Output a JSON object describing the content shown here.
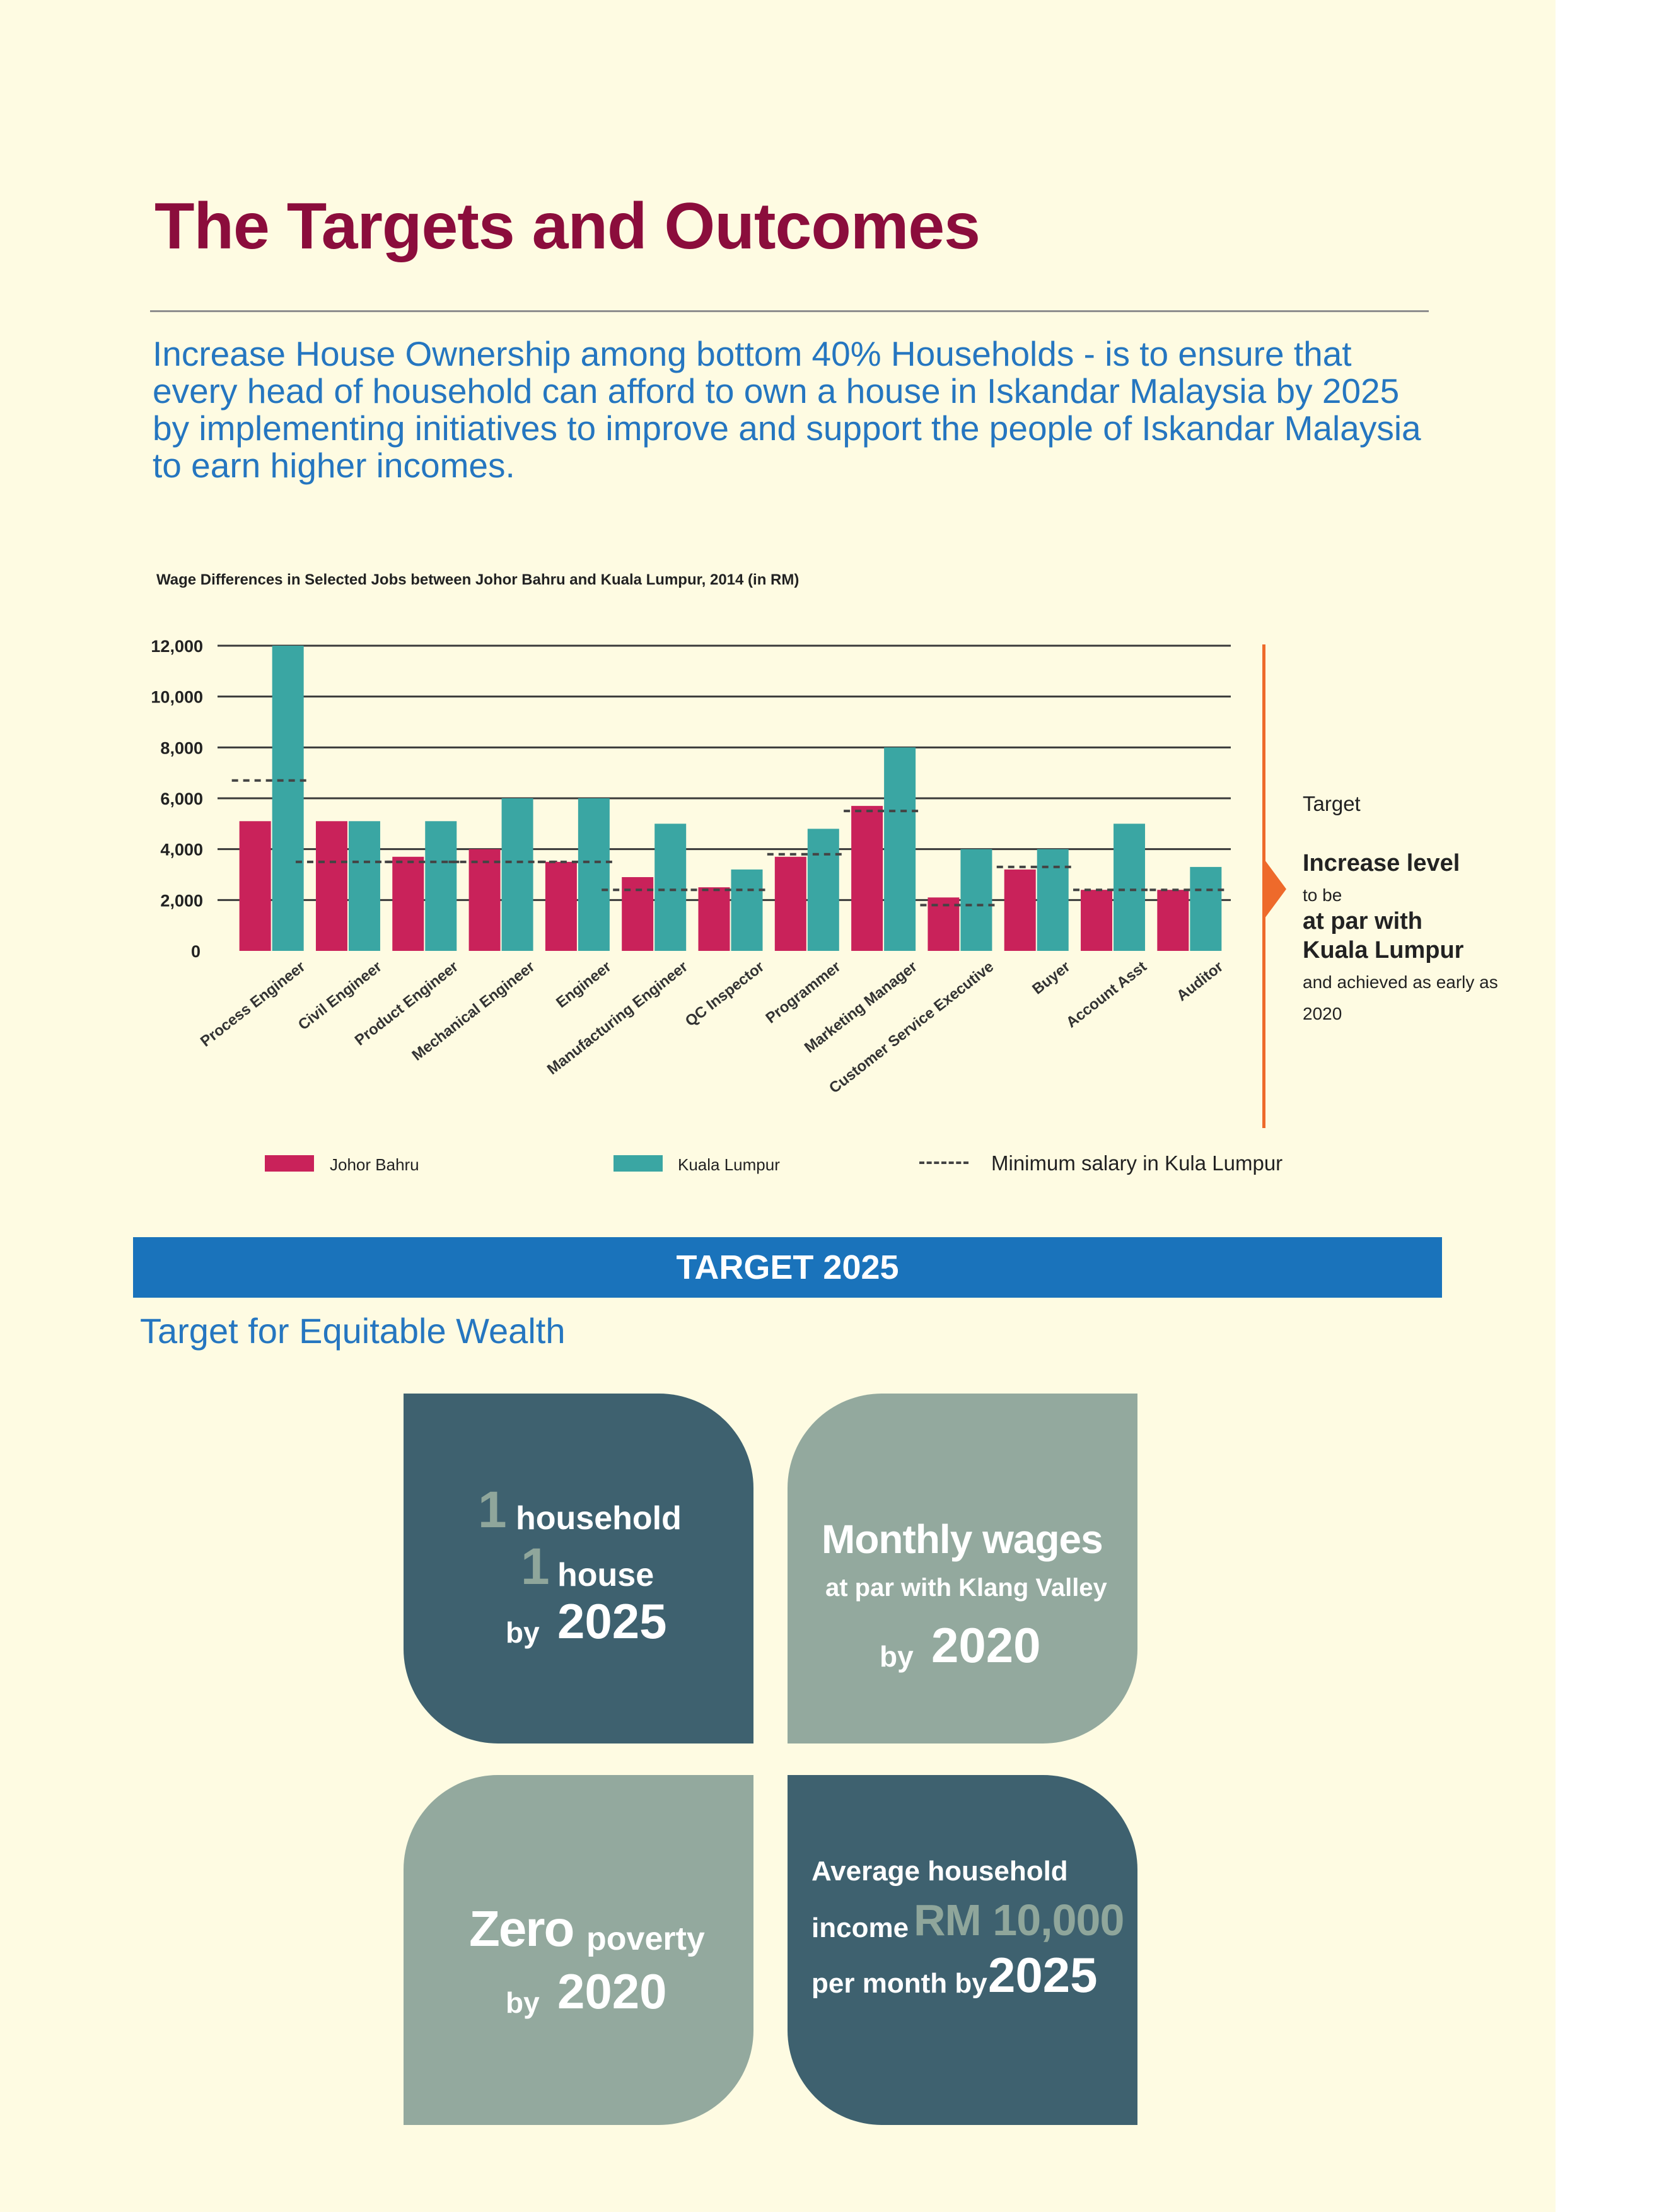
{
  "title": "The Targets and Outcomes",
  "intro": "Increase House Ownership among bottom 40% Households - is to ensure that every head of household can afford to own a house in Iskandar Malaysia by 2025 by implementing initiatives to improve and support the people of Iskandar Malaysia to earn higher incomes.",
  "colors": {
    "johor": "#c9225a",
    "kl": "#3aa6a3",
    "accent": "#ee6a2b",
    "banner": "#1a73bb",
    "dark_tile": "#3e616f",
    "sage_tile": "#93a99e"
  },
  "chart_data": {
    "type": "bar",
    "title": "Wage Differences in Selected Jobs between Johor Bahru and Kuala Lumpur, 2014 (in RM)",
    "categories": [
      "Process Engineer",
      "Civil Engineer",
      "Product Engineer",
      "Mechanical Engineer",
      "Engineer",
      "Manufacturing Engineer",
      "QC Inspector",
      "Programmer",
      "Marketing Manager",
      "Customer Service Executive",
      "Buyer",
      "Account Asst",
      "Auditor"
    ],
    "series": [
      {
        "name": "Johor Bahru",
        "values": [
          5100,
          5100,
          3700,
          4000,
          3500,
          2900,
          2500,
          3700,
          5700,
          2100,
          3200,
          2400,
          2400
        ]
      },
      {
        "name": "Kuala Lumpur",
        "values": [
          12000,
          5100,
          5100,
          6000,
          6000,
          5000,
          3200,
          4800,
          8000,
          4000,
          4000,
          5000,
          3300
        ]
      }
    ],
    "min_salary_name": "Minimum salary in Kula Lumpur",
    "min_salary": [
      6700,
      3500,
      3500,
      3500,
      3500,
      2400,
      2400,
      3800,
      5500,
      1800,
      3300,
      2400,
      2400
    ],
    "ylim": [
      0,
      12000
    ],
    "yticks": [
      "0",
      "2,000",
      "4,000",
      "6,000",
      "8,000",
      "10,000",
      "12,000"
    ],
    "legend_position": "bottom",
    "grid": true
  },
  "target": {
    "label": "Target",
    "line1": "Increase level",
    "line2": "to be",
    "line3": "at par with",
    "line4": "Kuala Lumpur",
    "line5": "and achieved as early as",
    "line6": "2020"
  },
  "legend": {
    "johor": "Johor Bahru",
    "kl": "Kuala Lumpur",
    "min": "Minimum salary in Kula Lumpur"
  },
  "banner": "TARGET 2025",
  "subhead": "Target for Equitable Wealth",
  "tiles": {
    "tl": {
      "n1": "1",
      "w1": "household",
      "n2": "1",
      "w2": "house",
      "by": "by",
      "year": "2025"
    },
    "tr": {
      "l1": "Monthly wages",
      "l2": "at par with Klang Valley",
      "by": "by",
      "year": "2020"
    },
    "bl": {
      "zero": "Zero",
      "poverty": "poverty",
      "by": "by",
      "year": "2020"
    },
    "br": {
      "l1": "Average household",
      "income": "income",
      "amount": "RM 10,000",
      "l3": "per month by",
      "year": "2025"
    }
  }
}
